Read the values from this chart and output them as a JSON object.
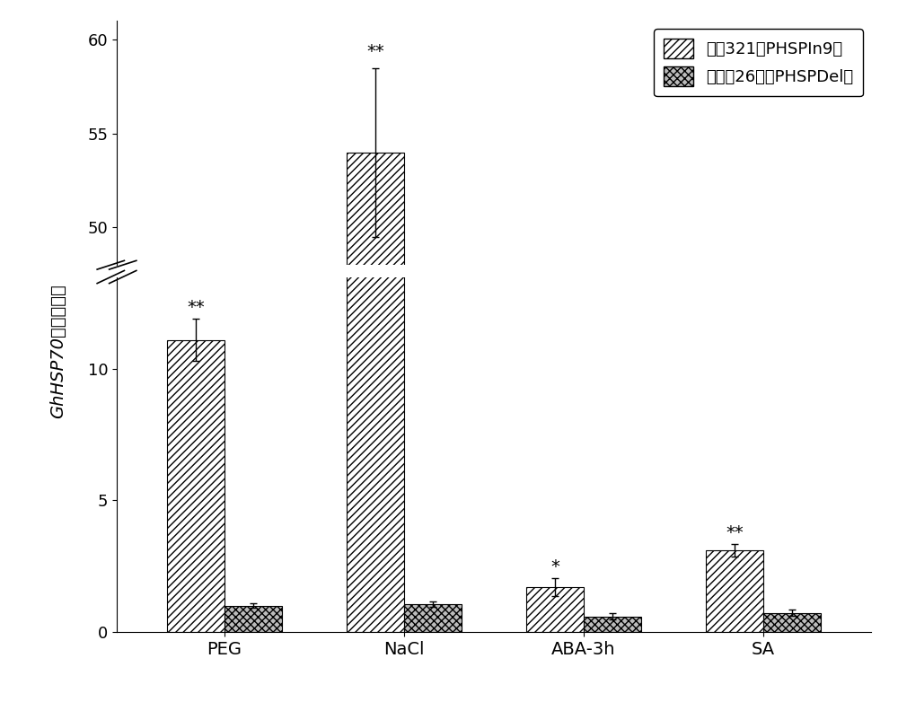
{
  "categories": [
    "PEG",
    "NaCl",
    "ABA-3h",
    "SA"
  ],
  "series1_label": "石远321（PHSPIn9）",
  "series2_label": "新陆无26号（PHSPDel）",
  "series1_values": [
    11.1,
    54.0,
    1.7,
    3.1
  ],
  "series2_values": [
    1.0,
    1.05,
    0.58,
    0.72
  ],
  "series1_errors": [
    0.8,
    4.5,
    0.35,
    0.25
  ],
  "series2_errors": [
    0.08,
    0.1,
    0.12,
    0.12
  ],
  "significance": [
    "**",
    "**",
    "*",
    "**"
  ],
  "ylabel": "GhHSP70相对表达量",
  "bar_width": 0.32,
  "series1_hatch": "////",
  "series2_hatch": "xxxx",
  "series1_color": "white",
  "series2_color": "#bbbbbb",
  "edge_color": "black",
  "background_color": "white",
  "ylim_lower": [
    0,
    13.5
  ],
  "ylim_upper": [
    48,
    61
  ],
  "yticks_lower": [
    0,
    5,
    10
  ],
  "yticks_upper": [
    50,
    55,
    60
  ],
  "figsize": [
    10.0,
    7.82
  ],
  "dpi": 100,
  "fontsize_labels": 14,
  "fontsize_ticks": 13,
  "fontsize_legend": 13,
  "fontsize_significance": 14
}
